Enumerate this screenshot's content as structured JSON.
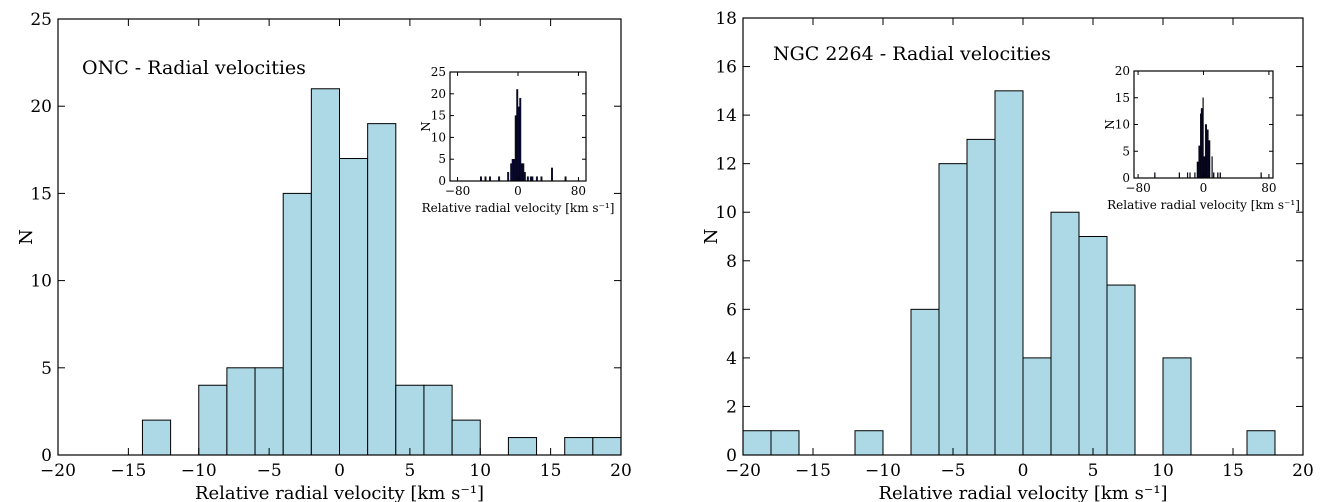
{
  "chart_data": [
    {
      "type": "bar",
      "title": "ONC - Radial velocities",
      "xlabel": "Relative radial velocity [km s⁻¹]",
      "ylabel": "N",
      "xlim": [
        -20,
        20
      ],
      "ylim": [
        0,
        25
      ],
      "xticks": [
        -20,
        -15,
        -10,
        -5,
        0,
        5,
        10,
        15,
        20
      ],
      "yticks": [
        0,
        5,
        10,
        15,
        20,
        25
      ],
      "bar_color": "#add8e6",
      "bin_width": 2,
      "bins": [
        {
          "x0": -14,
          "x1": -12,
          "value": 2
        },
        {
          "x0": -10,
          "x1": -8,
          "value": 4
        },
        {
          "x0": -8,
          "x1": -6,
          "value": 5
        },
        {
          "x0": -6,
          "x1": -4,
          "value": 5
        },
        {
          "x0": -4,
          "x1": -2,
          "value": 15
        },
        {
          "x0": -2,
          "x1": 0,
          "value": 21
        },
        {
          "x0": 0,
          "x1": 2,
          "value": 17
        },
        {
          "x0": 2,
          "x1": 4,
          "value": 19
        },
        {
          "x0": 4,
          "x1": 6,
          "value": 4
        },
        {
          "x0": 6,
          "x1": 8,
          "value": 4
        },
        {
          "x0": 8,
          "x1": 10,
          "value": 2
        },
        {
          "x0": 12,
          "x1": 14,
          "value": 1
        },
        {
          "x0": 16,
          "x1": 18,
          "value": 1
        },
        {
          "x0": 18,
          "x1": 20,
          "value": 1
        }
      ],
      "inset": {
        "xlabel": "Relative radial velocity [km s⁻¹]",
        "ylabel": "N",
        "xlim": [
          -90,
          90
        ],
        "ylim": [
          0,
          25
        ],
        "xticks": [
          -80,
          0,
          80
        ],
        "yticks": [
          0,
          5,
          10,
          15,
          20,
          25
        ],
        "bar_color": "#0a0a3c",
        "bin_width": 2,
        "bins": [
          {
            "x0": -50,
            "x1": -48,
            "value": 1
          },
          {
            "x0": -44,
            "x1": -42,
            "value": 1
          },
          {
            "x0": -38,
            "x1": -36,
            "value": 1
          },
          {
            "x0": -26,
            "x1": -24,
            "value": 1
          },
          {
            "x0": -14,
            "x1": -12,
            "value": 2
          },
          {
            "x0": -10,
            "x1": -8,
            "value": 4
          },
          {
            "x0": -8,
            "x1": -6,
            "value": 5
          },
          {
            "x0": -6,
            "x1": -4,
            "value": 5
          },
          {
            "x0": -4,
            "x1": -2,
            "value": 15
          },
          {
            "x0": -2,
            "x1": 0,
            "value": 21
          },
          {
            "x0": 0,
            "x1": 2,
            "value": 17
          },
          {
            "x0": 2,
            "x1": 4,
            "value": 19
          },
          {
            "x0": 4,
            "x1": 6,
            "value": 4
          },
          {
            "x0": 6,
            "x1": 8,
            "value": 4
          },
          {
            "x0": 8,
            "x1": 10,
            "value": 2
          },
          {
            "x0": 12,
            "x1": 14,
            "value": 1
          },
          {
            "x0": 16,
            "x1": 18,
            "value": 1
          },
          {
            "x0": 18,
            "x1": 20,
            "value": 1
          },
          {
            "x0": 24,
            "x1": 26,
            "value": 1
          },
          {
            "x0": 30,
            "x1": 32,
            "value": 1
          },
          {
            "x0": 44,
            "x1": 46,
            "value": 3
          },
          {
            "x0": 62,
            "x1": 64,
            "value": 1
          }
        ]
      }
    },
    {
      "type": "bar",
      "title": "NGC 2264 - Radial velocities",
      "xlabel": "Relative radial velocity [km s⁻¹]",
      "ylabel": "N",
      "xlim": [
        -20,
        20
      ],
      "ylim": [
        0,
        18
      ],
      "xticks": [
        -20,
        -15,
        -10,
        -5,
        0,
        5,
        10,
        15,
        20
      ],
      "yticks": [
        0,
        2,
        4,
        6,
        8,
        10,
        12,
        14,
        16,
        18
      ],
      "bar_color": "#add8e6",
      "bin_width": 2,
      "bins": [
        {
          "x0": -20,
          "x1": -18,
          "value": 1
        },
        {
          "x0": -18,
          "x1": -16,
          "value": 1
        },
        {
          "x0": -12,
          "x1": -10,
          "value": 1
        },
        {
          "x0": -8,
          "x1": -6,
          "value": 6
        },
        {
          "x0": -6,
          "x1": -4,
          "value": 12
        },
        {
          "x0": -4,
          "x1": -2,
          "value": 13
        },
        {
          "x0": -2,
          "x1": 0,
          "value": 15
        },
        {
          "x0": 0,
          "x1": 2,
          "value": 4
        },
        {
          "x0": 2,
          "x1": 4,
          "value": 10
        },
        {
          "x0": 4,
          "x1": 6,
          "value": 9
        },
        {
          "x0": 6,
          "x1": 8,
          "value": 7
        },
        {
          "x0": 10,
          "x1": 12,
          "value": 4
        },
        {
          "x0": 16,
          "x1": 18,
          "value": 1
        }
      ],
      "inset": {
        "xlabel": "Relative radial velocity [km s⁻¹]",
        "ylabel": "N",
        "xlim": [
          -85,
          85
        ],
        "ylim": [
          0,
          20
        ],
        "xticks": [
          -80,
          0,
          80
        ],
        "yticks": [
          0,
          5,
          10,
          15,
          20
        ],
        "bar_color": "#0a0a3c",
        "bin_width": 1,
        "bins": [
          {
            "x0": -60,
            "x1": -59,
            "value": 1
          },
          {
            "x0": -30,
            "x1": -29,
            "value": 1
          },
          {
            "x0": -20,
            "x1": -19,
            "value": 1
          },
          {
            "x0": -17,
            "x1": -16,
            "value": 1
          },
          {
            "x0": -11,
            "x1": -10,
            "value": 1
          },
          {
            "x0": -8,
            "x1": -7,
            "value": 3
          },
          {
            "x0": -7,
            "x1": -6,
            "value": 3
          },
          {
            "x0": -6,
            "x1": -5,
            "value": 6
          },
          {
            "x0": -5,
            "x1": -4,
            "value": 6
          },
          {
            "x0": -4,
            "x1": -3,
            "value": 12
          },
          {
            "x0": -3,
            "x1": -2,
            "value": 13
          },
          {
            "x0": -2,
            "x1": -1,
            "value": 13
          },
          {
            "x0": -1,
            "x1": 0,
            "value": 15
          },
          {
            "x0": 0,
            "x1": 1,
            "value": 4
          },
          {
            "x0": 1,
            "x1": 2,
            "value": 4
          },
          {
            "x0": 2,
            "x1": 3,
            "value": 10
          },
          {
            "x0": 3,
            "x1": 4,
            "value": 10
          },
          {
            "x0": 4,
            "x1": 5,
            "value": 9
          },
          {
            "x0": 5,
            "x1": 6,
            "value": 9
          },
          {
            "x0": 6,
            "x1": 7,
            "value": 7
          },
          {
            "x0": 7,
            "x1": 8,
            "value": 7
          },
          {
            "x0": 10,
            "x1": 11,
            "value": 4
          },
          {
            "x0": 12,
            "x1": 13,
            "value": 1
          },
          {
            "x0": 17,
            "x1": 18,
            "value": 1
          },
          {
            "x0": 20,
            "x1": 21,
            "value": 1
          },
          {
            "x0": 70,
            "x1": 71,
            "value": 1
          }
        ]
      }
    }
  ]
}
